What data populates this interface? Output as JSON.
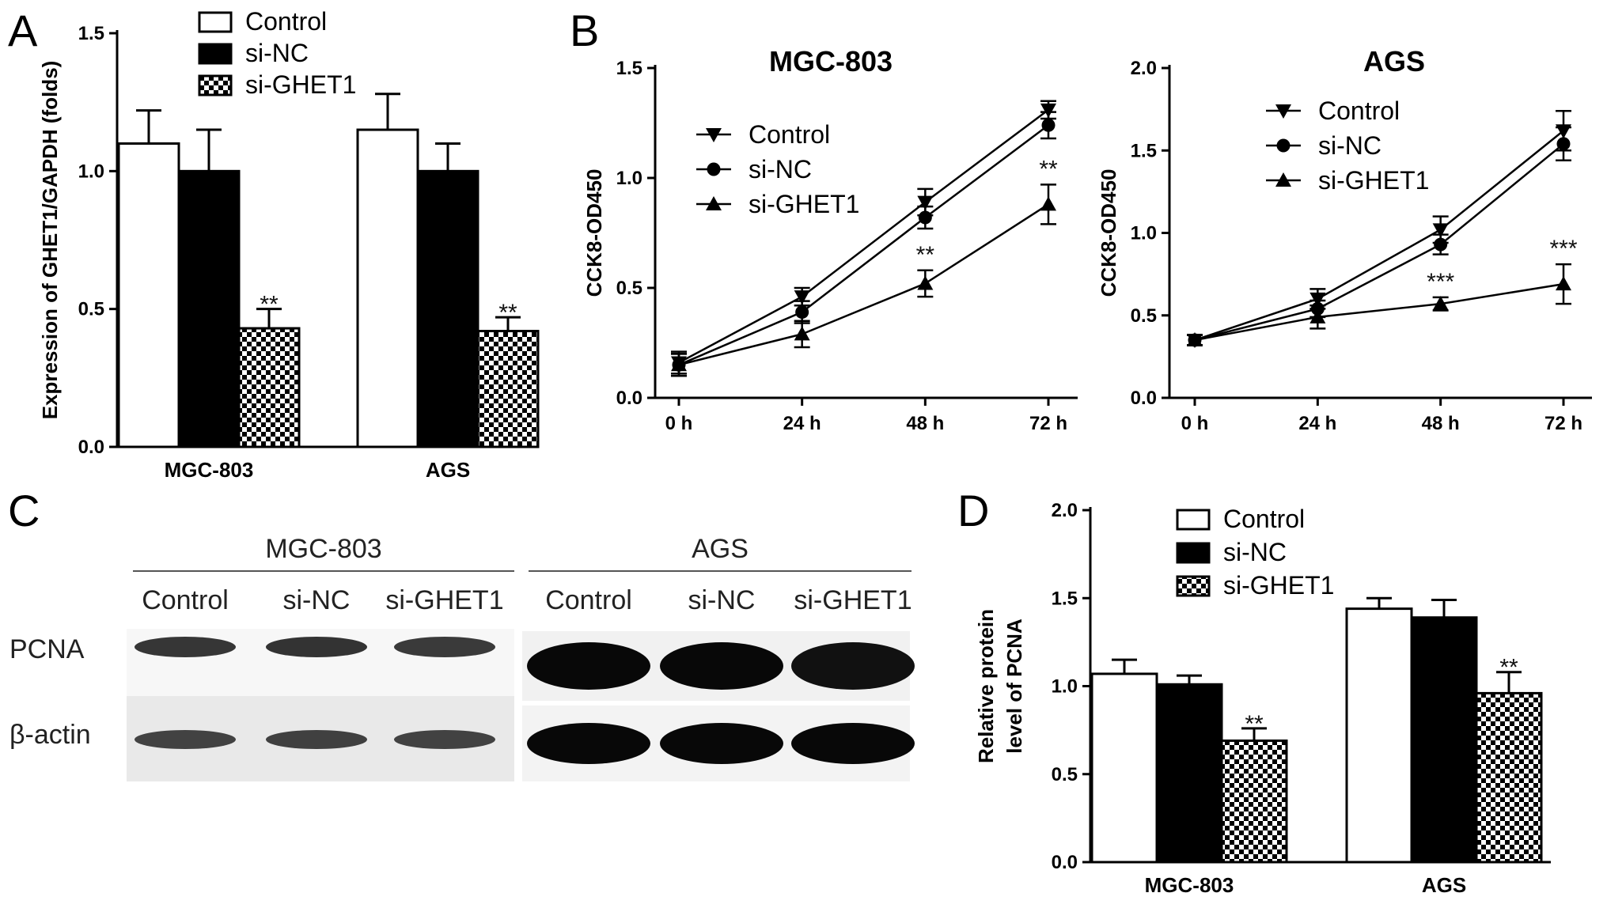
{
  "panels": {
    "A": "A",
    "B": "B",
    "C": "C",
    "D": "D"
  },
  "chart_data": [
    {
      "id": "A",
      "type": "bar",
      "ylabel": "Expression of GHET1/GAPDH (folds)",
      "ylim": [
        0,
        1.5
      ],
      "yticks": [
        "0.0",
        "0.5",
        "1.0",
        "1.5"
      ],
      "categories": [
        "MGC-803",
        "AGS"
      ],
      "legend_position": "top-center",
      "series": [
        {
          "name": "Control",
          "values": [
            1.1,
            1.15
          ],
          "errors": [
            0.12,
            0.13
          ],
          "fill": "white"
        },
        {
          "name": "si-NC",
          "values": [
            1.0,
            1.0
          ],
          "errors": [
            0.15,
            0.1
          ],
          "fill": "black"
        },
        {
          "name": "si-GHET1",
          "values": [
            0.43,
            0.42
          ],
          "errors": [
            0.07,
            0.05
          ],
          "fill": "checker"
        }
      ],
      "annotations": [
        {
          "category": "MGC-803",
          "series": "si-GHET1",
          "text": "**"
        },
        {
          "category": "AGS",
          "series": "si-GHET1",
          "text": "**"
        }
      ]
    },
    {
      "id": "B1",
      "type": "line",
      "title": "MGC-803",
      "ylabel": "CCK8-OD450",
      "ylim": [
        0,
        1.5
      ],
      "yticks": [
        "0.0",
        "0.5",
        "1.0",
        "1.5"
      ],
      "x": [
        "0 h",
        "24 h",
        "48 h",
        "72 h"
      ],
      "legend_position": "center-left",
      "series": [
        {
          "name": "Control",
          "marker": "triangle-down",
          "values": [
            0.16,
            0.46,
            0.89,
            1.31
          ],
          "errors": [
            0.05,
            0.04,
            0.06,
            0.04
          ]
        },
        {
          "name": "si-NC",
          "marker": "circle",
          "values": [
            0.15,
            0.39,
            0.82,
            1.24
          ],
          "errors": [
            0.05,
            0.05,
            0.05,
            0.06
          ]
        },
        {
          "name": "si-GHET1",
          "marker": "triangle-up",
          "values": [
            0.15,
            0.29,
            0.52,
            0.88
          ],
          "errors": [
            0.05,
            0.06,
            0.06,
            0.09
          ]
        }
      ],
      "annotations": [
        {
          "x": "48 h",
          "text": "**"
        },
        {
          "x": "72 h",
          "text": "**"
        }
      ]
    },
    {
      "id": "B2",
      "type": "line",
      "title": "AGS",
      "ylabel": "CCK8-OD450",
      "ylim": [
        0,
        2.0
      ],
      "yticks": [
        "0.0",
        "0.5",
        "1.0",
        "1.5",
        "2.0"
      ],
      "x": [
        "0 h",
        "24 h",
        "48 h",
        "72 h"
      ],
      "legend_position": "top-center",
      "series": [
        {
          "name": "Control",
          "marker": "triangle-down",
          "values": [
            0.35,
            0.6,
            1.02,
            1.62
          ],
          "errors": [
            0.03,
            0.06,
            0.08,
            0.12
          ]
        },
        {
          "name": "si-NC",
          "marker": "circle",
          "values": [
            0.35,
            0.54,
            0.93,
            1.54
          ],
          "errors": [
            0.03,
            0.05,
            0.06,
            0.1
          ]
        },
        {
          "name": "si-GHET1",
          "marker": "triangle-up",
          "values": [
            0.35,
            0.49,
            0.57,
            0.69
          ],
          "errors": [
            0.03,
            0.07,
            0.04,
            0.12
          ]
        }
      ],
      "annotations": [
        {
          "x": "48 h",
          "text": "***"
        },
        {
          "x": "72 h",
          "text": "***"
        }
      ]
    },
    {
      "id": "D",
      "type": "bar",
      "ylabel_line1": "Relative protein",
      "ylabel_line2": "level of PCNA",
      "ylim": [
        0,
        2.0
      ],
      "yticks": [
        "0.0",
        "0.5",
        "1.0",
        "1.5",
        "2.0"
      ],
      "categories": [
        "MGC-803",
        "AGS"
      ],
      "legend_position": "top-center",
      "series": [
        {
          "name": "Control",
          "values": [
            1.07,
            1.44
          ],
          "errors": [
            0.08,
            0.06
          ],
          "fill": "white"
        },
        {
          "name": "si-NC",
          "values": [
            1.01,
            1.39
          ],
          "errors": [
            0.05,
            0.1
          ],
          "fill": "black"
        },
        {
          "name": "si-GHET1",
          "values": [
            0.69,
            0.96
          ],
          "errors": [
            0.07,
            0.12
          ],
          "fill": "checker"
        }
      ],
      "annotations": [
        {
          "category": "MGC-803",
          "series": "si-GHET1",
          "text": "**"
        },
        {
          "category": "AGS",
          "series": "si-GHET1",
          "text": "**"
        }
      ]
    }
  ],
  "blot": {
    "groups": [
      "MGC-803",
      "AGS"
    ],
    "lanes": [
      "Control",
      "si-NC",
      "si-GHET1",
      "Control",
      "si-NC",
      "si-GHET1"
    ],
    "rows": [
      "PCNA",
      "β-actin"
    ],
    "band_intensity": {
      "PCNA": [
        0.78,
        0.82,
        0.72,
        1.0,
        1.0,
        0.9
      ],
      "β-actin": [
        0.6,
        0.62,
        0.6,
        1.0,
        1.0,
        1.0
      ]
    }
  }
}
